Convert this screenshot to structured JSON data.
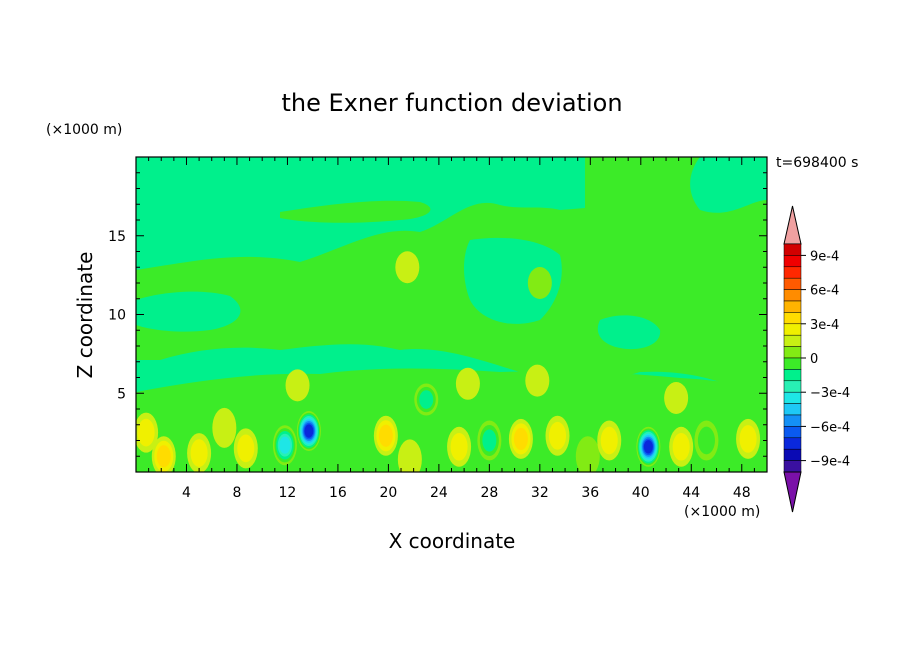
{
  "chart_data": {
    "type": "heatmap",
    "title": "the Exner function deviation",
    "xlabel": "X coordinate",
    "ylabel": "Z coordinate",
    "x_unit": "(×1000 m)",
    "z_unit": "(×1000 m)",
    "time_label": "t=698400 s",
    "xlim": [
      0,
      50
    ],
    "ylim": [
      0,
      20
    ],
    "x_ticks": [
      4,
      8,
      12,
      16,
      20,
      24,
      28,
      32,
      36,
      40,
      44,
      48
    ],
    "x_tick_labels": [
      "4",
      "8",
      "12",
      "16",
      "20",
      "24",
      "28",
      "32",
      "36",
      "40",
      "44",
      "48"
    ],
    "y_ticks": [
      5,
      10,
      15
    ],
    "y_tick_labels": [
      "5",
      "10",
      "15"
    ],
    "colorbar": {
      "min": -0.0011,
      "max": 0.0011,
      "step": 0.0001,
      "tick_values": [
        0.0009,
        0.0006,
        0.0003,
        0,
        -0.0003,
        -0.0006,
        -0.0009
      ],
      "tick_labels": [
        "9e-4",
        "6e-4",
        "3e-4",
        "0",
        "−3e-4",
        "−6e-4",
        "−9e-4"
      ],
      "colors": [
        "#7a10a8",
        "#3a10a0",
        "#0a0ab4",
        "#0a28dc",
        "#0a5af0",
        "#1490f5",
        "#1ec8f5",
        "#1ee6e6",
        "#28f0b4",
        "#00f08c",
        "#3ceb28",
        "#82eb14",
        "#c8f014",
        "#f0f000",
        "#ffdc00",
        "#ffb400",
        "#ff8c00",
        "#ff5a00",
        "#ff2800",
        "#f00000",
        "#d20000",
        "#f0a0a0"
      ]
    },
    "features": [
      {
        "x": 0.8,
        "z": 2.5,
        "value": 0.0002
      },
      {
        "x": 2.2,
        "z": 1.0,
        "value": 0.00025
      },
      {
        "x": 5.0,
        "z": 1.2,
        "value": 0.0002
      },
      {
        "x": 7.0,
        "z": 2.8,
        "value": 0.00015
      },
      {
        "x": 8.7,
        "z": 1.5,
        "value": 0.0002
      },
      {
        "x": 11.8,
        "z": 1.7,
        "value": -0.00045
      },
      {
        "x": 13.7,
        "z": 2.6,
        "value": -0.0009
      },
      {
        "x": 12.8,
        "z": 5.5,
        "value": 0.00015
      },
      {
        "x": 19.8,
        "z": 2.3,
        "value": 0.00025
      },
      {
        "x": 23.0,
        "z": 4.6,
        "value": -0.0003
      },
      {
        "x": 21.7,
        "z": 0.8,
        "value": 0.00015
      },
      {
        "x": 25.6,
        "z": 1.6,
        "value": 0.0002
      },
      {
        "x": 26.3,
        "z": 5.6,
        "value": 0.0001
      },
      {
        "x": 28.0,
        "z": 2.0,
        "value": -0.00025
      },
      {
        "x": 30.5,
        "z": 2.1,
        "value": 0.00025
      },
      {
        "x": 31.8,
        "z": 5.8,
        "value": 0.0001
      },
      {
        "x": 33.4,
        "z": 2.3,
        "value": 0.0002
      },
      {
        "x": 35.8,
        "z": 1.0,
        "value": -0.00015
      },
      {
        "x": 37.5,
        "z": 2.0,
        "value": 0.0002
      },
      {
        "x": 40.6,
        "z": 1.6,
        "value": -0.00085
      },
      {
        "x": 43.2,
        "z": 1.6,
        "value": 0.0002
      },
      {
        "x": 45.2,
        "z": 2.0,
        "value": -0.0002
      },
      {
        "x": 48.5,
        "z": 2.1,
        "value": 0.0002
      },
      {
        "x": 42.8,
        "z": 4.7,
        "value": 0.0001
      },
      {
        "x": 21.5,
        "z": 13.0,
        "value": 0.0001
      },
      {
        "x": 32.0,
        "z": 12.0,
        "value": -8e-05
      }
    ]
  }
}
